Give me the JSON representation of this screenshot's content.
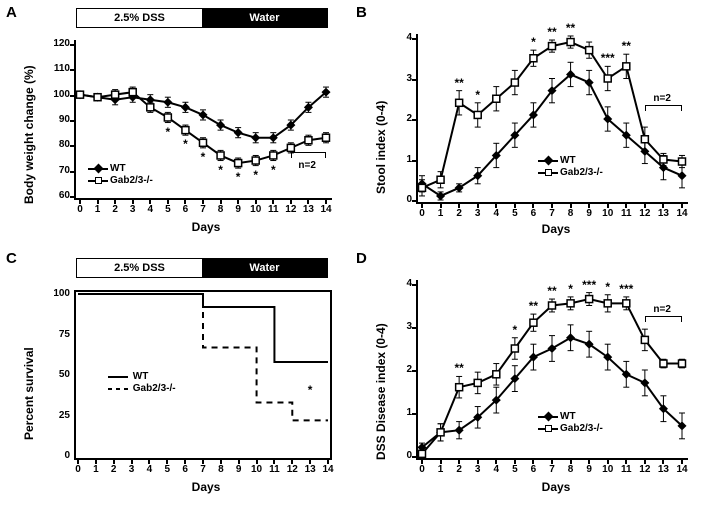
{
  "figure": {
    "treatment": {
      "dss_label": "2.5% DSS",
      "water_label": "Water"
    },
    "xaxis_label": "Days",
    "legend": {
      "wt": "WT",
      "ko": "Gab2/3-/-"
    },
    "n2_label": "n=2",
    "colors": {
      "bg": "#ffffff",
      "line": "#000000"
    },
    "panelA": {
      "label": "A",
      "ylabel": "Body weight change (%)",
      "ylim": [
        60,
        120
      ],
      "ytick_step": 10,
      "xlim": [
        0,
        14
      ],
      "xtick_step": 1,
      "series": {
        "WT": [
          100,
          99,
          98,
          99,
          98,
          97,
          95,
          92,
          88,
          85,
          83,
          83,
          88,
          95,
          101
        ],
        "KO": [
          100,
          99,
          100,
          101,
          95,
          91,
          86,
          81,
          76,
          73,
          74,
          76,
          79,
          82,
          83
        ]
      },
      "error": {
        "WT": [
          1,
          1,
          2,
          2,
          2,
          2,
          2,
          2,
          2,
          2,
          2,
          2,
          2,
          2,
          2
        ],
        "KO": [
          1,
          1,
          2,
          2,
          2,
          2,
          2,
          2,
          2,
          2,
          2,
          2,
          2,
          2,
          2
        ]
      },
      "sig": [
        "",
        "",
        "",
        "",
        "",
        "*",
        "*",
        "*",
        "*",
        "*",
        "*",
        "*",
        "",
        "",
        ""
      ]
    },
    "panelB": {
      "label": "B",
      "ylabel": "Stool index (0-4)",
      "ylim": [
        0,
        4
      ],
      "ytick_step": 1,
      "xlim": [
        0,
        14
      ],
      "xtick_step": 1,
      "series": {
        "WT": [
          0.4,
          0.1,
          0.3,
          0.6,
          1.1,
          1.6,
          2.1,
          2.7,
          3.1,
          2.9,
          2.0,
          1.6,
          1.2,
          0.8,
          0.6
        ],
        "KO": [
          0.3,
          0.5,
          2.4,
          2.1,
          2.5,
          2.9,
          3.5,
          3.8,
          3.9,
          3.7,
          3.0,
          3.3,
          1.5,
          1.0,
          0.95
        ]
      },
      "error": {
        "WT": [
          0.2,
          0.1,
          0.1,
          0.2,
          0.3,
          0.3,
          0.3,
          0.3,
          0.3,
          0.3,
          0.3,
          0.3,
          0.3,
          0.3,
          0.3
        ],
        "KO": [
          0.2,
          0.2,
          0.3,
          0.3,
          0.3,
          0.3,
          0.2,
          0.15,
          0.15,
          0.2,
          0.3,
          0.3,
          0.3,
          0.15,
          0.15
        ]
      },
      "sig": [
        "",
        "",
        "**",
        "*",
        "",
        "",
        "*",
        "**",
        "**",
        "",
        "***",
        "**",
        "",
        "",
        ""
      ]
    },
    "panelC": {
      "label": "C",
      "ylabel": "Percent survival",
      "ylim": [
        0,
        100
      ],
      "ytick_step": 25,
      "xlim": [
        0,
        14
      ],
      "xtick_step": 1,
      "wt_steps": [
        [
          0,
          100
        ],
        [
          7,
          100
        ],
        [
          7,
          92
        ],
        [
          11,
          92
        ],
        [
          11,
          58
        ],
        [
          14,
          58
        ]
      ],
      "ko_steps": [
        [
          0,
          100
        ],
        [
          7,
          100
        ],
        [
          7,
          67
        ],
        [
          8,
          67
        ],
        [
          8,
          67
        ],
        [
          10,
          67
        ],
        [
          10,
          33
        ],
        [
          12,
          33
        ],
        [
          12,
          22
        ],
        [
          14,
          22
        ]
      ],
      "sig_day": 13,
      "sig": "*"
    },
    "panelD": {
      "label": "D",
      "ylabel": "DSS Disease  index (0-4)",
      "ylim": [
        0,
        4
      ],
      "ytick_step": 1,
      "xlim": [
        0,
        14
      ],
      "xtick_step": 1,
      "series": {
        "WT": [
          0.2,
          0.55,
          0.6,
          0.9,
          1.3,
          1.8,
          2.3,
          2.5,
          2.75,
          2.6,
          2.3,
          1.9,
          1.7,
          1.1,
          0.7
        ],
        "KO": [
          0.05,
          0.55,
          1.6,
          1.7,
          1.9,
          2.5,
          3.1,
          3.5,
          3.55,
          3.65,
          3.55,
          3.55,
          2.7,
          2.15,
          2.15
        ]
      },
      "error": {
        "WT": [
          0.1,
          0.2,
          0.2,
          0.25,
          0.3,
          0.3,
          0.3,
          0.3,
          0.3,
          0.3,
          0.3,
          0.3,
          0.3,
          0.3,
          0.3
        ],
        "KO": [
          0.05,
          0.2,
          0.25,
          0.25,
          0.25,
          0.25,
          0.2,
          0.15,
          0.15,
          0.15,
          0.2,
          0.15,
          0.25,
          0.1,
          0.1
        ]
      },
      "sig": [
        "",
        "",
        "**",
        "",
        "",
        "*",
        "**",
        "**",
        "*",
        "***",
        "*",
        "***",
        "",
        "",
        ""
      ]
    }
  }
}
